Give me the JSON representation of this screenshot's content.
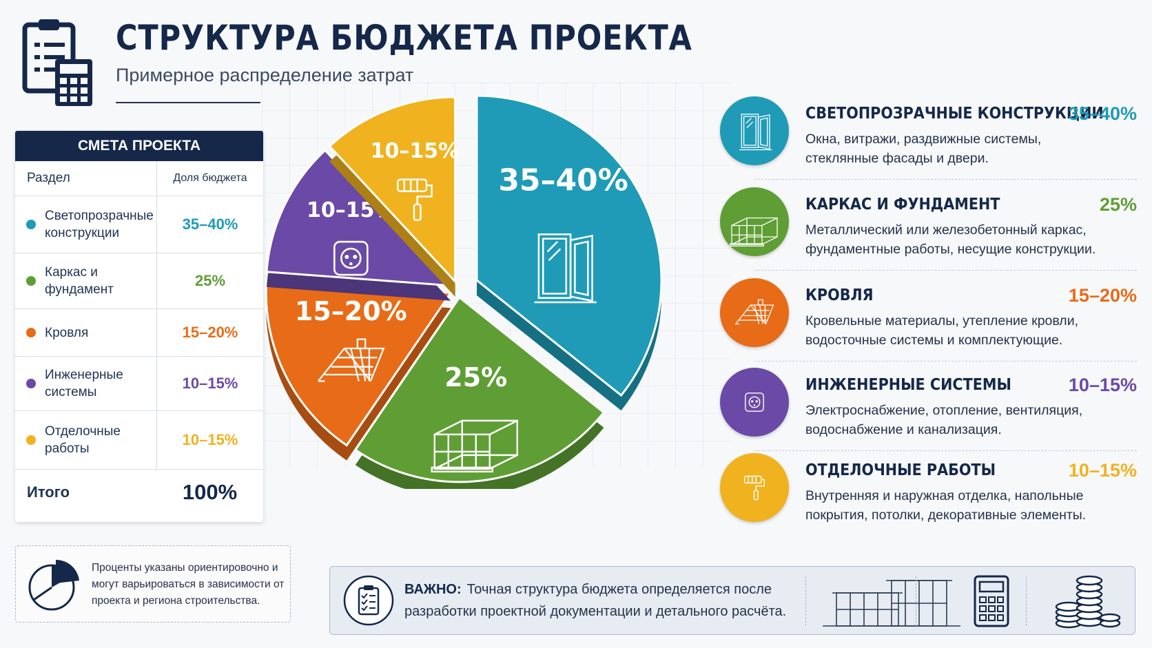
{
  "header": {
    "title": "СТРУКТУРА БЮДЖЕТА ПРОЕКТА",
    "subtitle": "Примерное распределение затрат"
  },
  "colors": {
    "navy": "#15284a",
    "blue": "#1f9bb7",
    "green": "#5f9e35",
    "orange": "#e86b17",
    "purple": "#6a4aa6",
    "yellow": "#f0b21e"
  },
  "table": {
    "title": "СМЕТА ПРОЕКТА",
    "col_section": "Раздел",
    "col_share": "Доля бюджета",
    "rows": [
      {
        "label": "Светопрозрачные конструкции",
        "value": "35–40%",
        "color": "#1f9bb7"
      },
      {
        "label": "Каркас и фундамент",
        "value": "25%",
        "color": "#5f9e35"
      },
      {
        "label": "Кровля",
        "value": "15–20%",
        "color": "#e86b17"
      },
      {
        "label": "Инженерные системы",
        "value": "10–15%",
        "color": "#6a4aa6"
      },
      {
        "label": "Отделочные работы",
        "value": "10–15%",
        "color": "#f0b21e"
      }
    ],
    "total_label": "Итого",
    "total_value": "100%"
  },
  "note": {
    "text": "Проценты указаны ориентировочно и могут варьироваться в зависимости от проекта и региона строительства."
  },
  "chart_data": {
    "type": "pie",
    "categories": [
      "Светопрозрачные конструкции",
      "Каркас и фундамент",
      "Кровля",
      "Инженерные системы",
      "Отделочные работы"
    ],
    "labels": [
      "35–40%",
      "25%",
      "15–20%",
      "10–15%",
      "10–15%"
    ],
    "values": [
      37.5,
      25,
      17.5,
      12.5,
      12.5
    ],
    "colors": [
      "#1f9bb7",
      "#5f9e35",
      "#e86b17",
      "#6a4aa6",
      "#f0b21e"
    ],
    "icons": [
      "window-icon",
      "frame-icon",
      "roof-icon",
      "socket-icon",
      "paint-roller-icon"
    ]
  },
  "legend": [
    {
      "title": "СВЕТОПРОЗРАЧНЫЕ КОНСТРУКЦИИ",
      "pct": "35–40%",
      "desc": "Окна, витражи, раздвижные системы, стеклянные фасады и двери.",
      "color": "#1f9bb7",
      "icon": "window-icon"
    },
    {
      "title": "КАРКАС И ФУНДАМЕНТ",
      "pct": "25%",
      "desc": "Металлический или железобетонный каркас, фундаментные работы, несущие конструкции.",
      "color": "#5f9e35",
      "icon": "frame-icon"
    },
    {
      "title": "КРОВЛЯ",
      "pct": "15–20%",
      "desc": "Кровельные материалы, утепление кровли, водосточные системы и комплектующие.",
      "color": "#e86b17",
      "icon": "roof-icon"
    },
    {
      "title": "ИНЖЕНЕРНЫЕ СИСТЕМЫ",
      "pct": "10–15%",
      "desc": "Электроснабжение, отопление, вентиляция, водоснабжение и канализация.",
      "color": "#6a4aa6",
      "icon": "socket-icon"
    },
    {
      "title": "ОТДЕЛОЧНЫЕ РАБОТЫ",
      "pct": "10–15%",
      "desc": "Внутренняя и наружная отделка, напольные покрытия, потолки, декоративные элементы.",
      "color": "#f0b21e",
      "icon": "paint-roller-icon"
    }
  ],
  "banner": {
    "strong": "ВАЖНО:",
    "text": "Точная структура бюджета определяется после разработки проектной документации и детального расчёта.",
    "icons": [
      "checklist-icon",
      "building-icon",
      "calculator-icon",
      "coins-icon"
    ]
  }
}
